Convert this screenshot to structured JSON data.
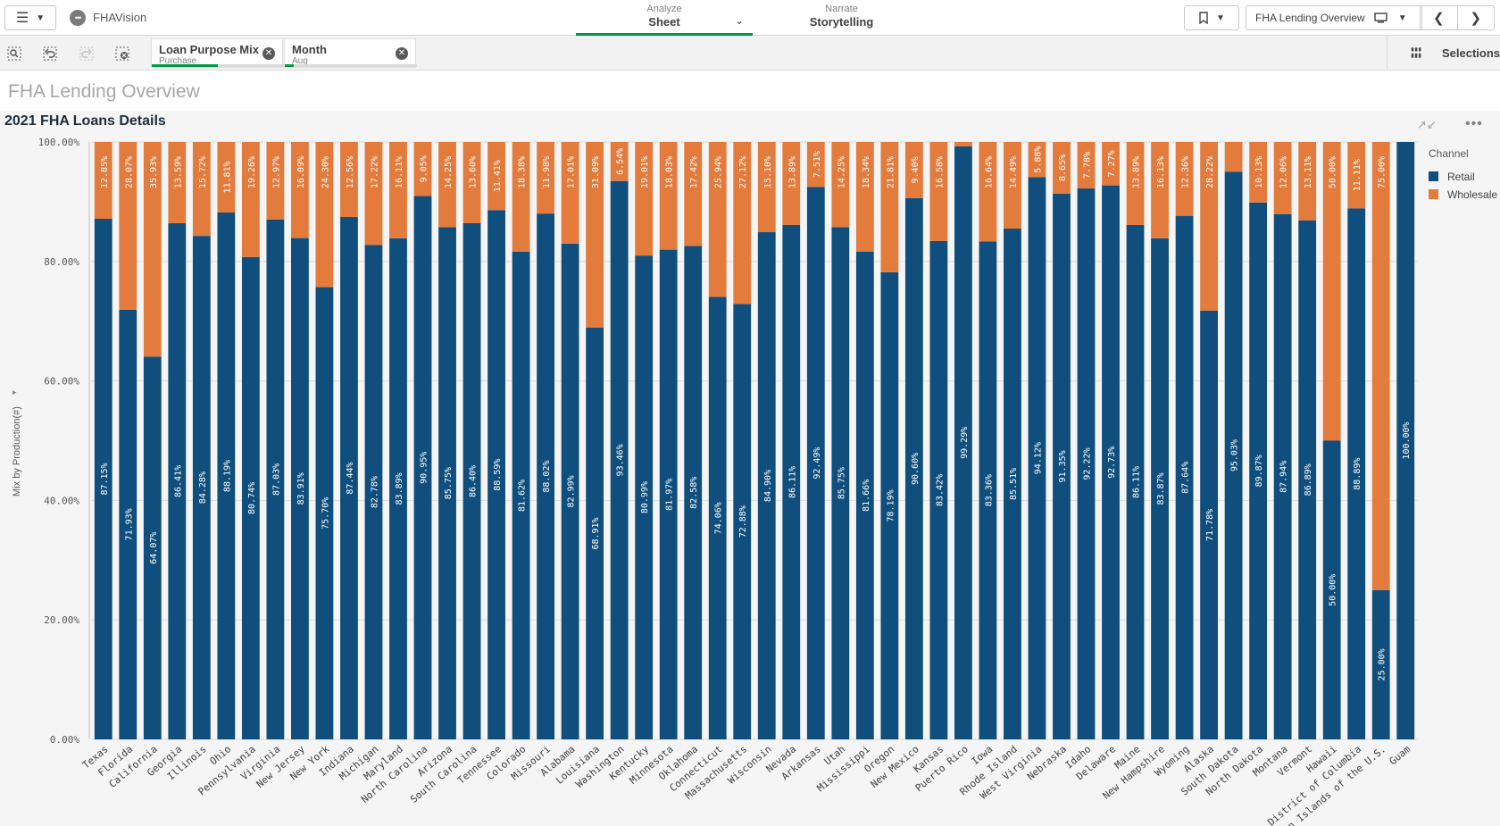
{
  "app": {
    "name": "FHAVision"
  },
  "nav": {
    "analyze": {
      "small": "Analyze",
      "big": "Sheet"
    },
    "narrate": {
      "small": "Narrate",
      "big": "Storytelling"
    }
  },
  "sheet_selector": {
    "label": "FHA Lending Overview"
  },
  "selections": {
    "chips": [
      {
        "field": "Loan Purpose Mix",
        "value": "Purchase"
      },
      {
        "field": "Month",
        "value": "Aug"
      }
    ],
    "panel_label": "Selections"
  },
  "sheet_title": "FHA Lending Overview",
  "colors": {
    "retail": "#0f4e7d",
    "wholesale": "#e37b3d",
    "accent": "#009845"
  },
  "chart_data": {
    "type": "bar",
    "stacked": true,
    "title": "2021 FHA Loans Details",
    "ylabel": "Mix by Production(#)",
    "ylim": [
      0,
      100
    ],
    "y_ticks": [
      "0.00%",
      "20.00%",
      "40.00%",
      "60.00%",
      "80.00%",
      "100.00%"
    ],
    "legend": {
      "title": "Channel",
      "placement": "right"
    },
    "categories": [
      "Texas",
      "Florida",
      "California",
      "Georgia",
      "Illinois",
      "Ohio",
      "Pennsylvania",
      "Virginia",
      "New Jersey",
      "New York",
      "Indiana",
      "Michigan",
      "Maryland",
      "North Carolina",
      "Arizona",
      "South Carolina",
      "Tennessee",
      "Colorado",
      "Missouri",
      "Alabama",
      "Louisiana",
      "Washington",
      "Kentucky",
      "Minnesota",
      "Oklahoma",
      "Connecticut",
      "Massachusetts",
      "Wisconsin",
      "Nevada",
      "Arkansas",
      "Utah",
      "Mississippi",
      "Oregon",
      "New Mexico",
      "Kansas",
      "Puerto Rico",
      "Iowa",
      "Rhode Island",
      "West Virginia",
      "Nebraska",
      "Idaho",
      "Delaware",
      "Maine",
      "New Hampshire",
      "Wyoming",
      "Alaska",
      "South Dakota",
      "North Dakota",
      "Montana",
      "Vermont",
      "Hawaii",
      "District of Columbia",
      "Virgin Islands of the U.S.",
      "Guam"
    ],
    "series": [
      {
        "name": "Retail",
        "values": [
          87.15,
          71.93,
          64.07,
          86.41,
          84.28,
          88.19,
          80.74,
          87.03,
          83.91,
          75.7,
          87.44,
          82.78,
          83.89,
          90.95,
          85.75,
          86.4,
          88.59,
          81.62,
          88.02,
          82.99,
          68.91,
          93.46,
          80.99,
          81.97,
          82.58,
          74.06,
          72.88,
          84.9,
          86.11,
          92.49,
          85.75,
          81.66,
          78.19,
          90.6,
          83.42,
          99.29,
          83.36,
          85.51,
          94.12,
          91.35,
          92.22,
          92.73,
          86.11,
          83.87,
          87.64,
          71.78,
          95.03,
          89.87,
          87.94,
          86.89,
          50.0,
          88.89,
          25.0,
          100.0
        ],
        "labels": [
          "87.15%",
          "71.93%",
          "64.07%",
          "86.41%",
          "84.28%",
          "88.19%",
          "80.74%",
          "87.03%",
          "83.91%",
          "75.70%",
          "87.44%",
          "82.78%",
          "83.89%",
          "90.95%",
          "85.75%",
          "86.40%",
          "88.59%",
          "81.62%",
          "88.02%",
          "82.99%",
          "68.91%",
          "93.46%",
          "80.99%",
          "81.97%",
          "82.58%",
          "74.06%",
          "72.88%",
          "84.90%",
          "86.11%",
          "92.49%",
          "85.75%",
          "81.66%",
          "78.19%",
          "90.60%",
          "83.42%",
          "99.29%",
          "83.36%",
          "85.51%",
          "94.12%",
          "91.35%",
          "92.22%",
          "92.73%",
          "86.11%",
          "83.87%",
          "87.64%",
          "71.78%",
          "95.03%",
          "89.87%",
          "87.94%",
          "86.89%",
          "50.00%",
          "88.89%",
          "25.00%",
          "100.00%"
        ]
      },
      {
        "name": "Wholesale",
        "values": [
          12.85,
          28.07,
          35.93,
          13.59,
          15.72,
          11.81,
          19.26,
          12.97,
          16.09,
          24.3,
          12.56,
          17.22,
          16.11,
          9.05,
          14.25,
          13.6,
          11.41,
          18.38,
          11.98,
          17.01,
          31.09,
          6.54,
          19.01,
          18.03,
          17.42,
          25.94,
          27.12,
          15.1,
          13.89,
          7.51,
          14.25,
          18.34,
          21.81,
          9.4,
          16.58,
          0.71,
          16.64,
          14.49,
          5.88,
          8.65,
          7.78,
          7.27,
          13.89,
          16.13,
          12.36,
          28.22,
          4.97,
          10.13,
          12.06,
          13.11,
          50.0,
          11.11,
          75.0,
          0
        ],
        "labels": [
          "12.85%",
          "28.07%",
          "35.93%",
          "13.59%",
          "15.72%",
          "11.81%",
          "19.26%",
          "12.97%",
          "16.09%",
          "24.30%",
          "12.56%",
          "17.22%",
          "16.11%",
          "9.05%",
          "14.25%",
          "13.60%",
          "11.41%",
          "18.38%",
          "11.98%",
          "17.01%",
          "31.09%",
          "6.54%",
          "19.01%",
          "18.03%",
          "17.42%",
          "25.94%",
          "27.12%",
          "15.10%",
          "13.89%",
          "7.51%",
          "14.25%",
          "18.34%",
          "21.81%",
          "9.40%",
          "16.58%",
          "",
          "16.64%",
          "14.49%",
          "5.88%",
          "8.65%",
          "7.78%",
          "7.27%",
          "13.89%",
          "16.13%",
          "12.36%",
          "28.22%",
          "",
          "10.13%",
          "12.06%",
          "13.11%",
          "50.00%",
          "11.11%",
          "75.00%",
          ""
        ]
      }
    ]
  }
}
